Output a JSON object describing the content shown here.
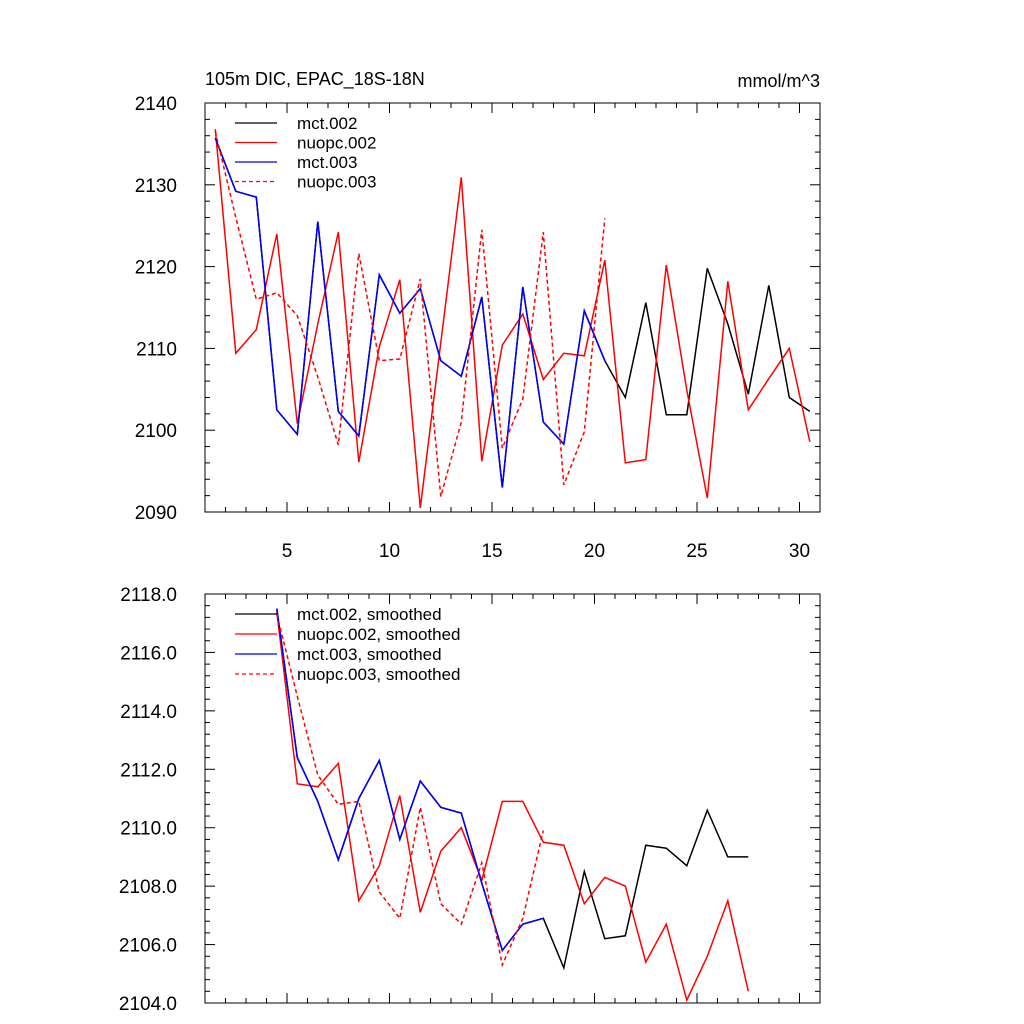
{
  "chart_data": [
    {
      "type": "line",
      "title": "105m DIC, EPAC_18S-18N",
      "units": "mmol/m^3",
      "xlabel": "",
      "ylabel": "",
      "xlim": [
        1,
        31
      ],
      "ylim": [
        2090,
        2140
      ],
      "x_ticks": [
        5,
        10,
        15,
        20,
        25,
        30
      ],
      "x_tick_labels": [
        "5",
        "10",
        "15",
        "20",
        "25",
        "30"
      ],
      "y_ticks": [
        2090,
        2100,
        2110,
        2120,
        2130,
        2140
      ],
      "y_tick_labels": [
        "2090",
        "2100",
        "2110",
        "2120",
        "2130",
        "2140"
      ],
      "show_x_tick_labels": true,
      "grid": false,
      "legend_position": "top-left",
      "series": [
        {
          "name": "mct.002",
          "color": "#000000",
          "dash": "solid",
          "x": [
            1.5,
            2.5,
            3.5,
            4.5,
            5.5,
            6.5,
            7.5,
            8.5,
            9.5,
            10.5,
            11.5,
            12.5,
            13.5,
            14.5,
            15.5,
            16.5,
            17.5,
            18.5,
            19.5,
            20.5,
            21.5,
            22.5,
            23.5,
            24.5,
            25.5,
            26.5,
            27.5,
            28.5,
            29.5,
            30.5
          ],
          "values": [
            2135.7,
            2129.2,
            2128.5,
            2102.5,
            2099.5,
            2125.5,
            2102.3,
            2099.3,
            2119.0,
            2114.3,
            2117.3,
            2108.5,
            2106.6,
            2116.3,
            2093.0,
            2117.5,
            2101.0,
            2098.3,
            2114.6,
            2108.5,
            2104.0,
            2115.6,
            2101.9,
            2101.9,
            2119.8,
            2113.0,
            2104.4,
            2117.7,
            2104.0,
            2102.3
          ]
        },
        {
          "name": "nuopc.002",
          "color": "#ff0000",
          "dash": "solid",
          "x": [
            1.5,
            2.5,
            3.5,
            4.5,
            5.5,
            6.5,
            7.5,
            8.5,
            9.5,
            10.5,
            11.5,
            12.5,
            13.5,
            14.5,
            15.5,
            16.5,
            17.5,
            18.5,
            19.5,
            20.5,
            21.5,
            22.5,
            23.5,
            24.5,
            25.5,
            26.5,
            27.5,
            28.5,
            29.5,
            30.5
          ],
          "values": [
            2136.8,
            2109.4,
            2112.3,
            2124.0,
            2100.8,
            2113.0,
            2124.2,
            2096.1,
            2110.2,
            2118.4,
            2090.5,
            2110.7,
            2130.9,
            2096.2,
            2110.4,
            2114.2,
            2106.2,
            2109.4,
            2109.1,
            2120.8,
            2096.0,
            2096.4,
            2120.2,
            2104.9,
            2091.7,
            2118.2,
            2102.5,
            2106.3,
            2110.0,
            2098.6
          ]
        },
        {
          "name": "mct.003",
          "color": "#0000ff",
          "dash": "solid",
          "x": [
            1.5,
            2.5,
            3.5,
            4.5,
            5.5,
            6.5,
            7.5,
            8.5,
            9.5,
            10.5,
            11.5,
            12.5,
            13.5,
            14.5,
            15.5,
            16.5,
            17.5,
            18.5,
            19.5,
            20.5
          ],
          "values": [
            2135.7,
            2129.2,
            2128.5,
            2102.5,
            2099.5,
            2125.5,
            2102.3,
            2099.3,
            2119.0,
            2114.3,
            2117.3,
            2108.5,
            2106.6,
            2116.3,
            2093.0,
            2117.5,
            2101.0,
            2098.3,
            2114.6,
            2108.5
          ]
        },
        {
          "name": "nuopc.003",
          "color": "#ff0000",
          "dash": "dashed",
          "x": [
            1.5,
            2.5,
            3.5,
            4.5,
            5.5,
            6.5,
            7.5,
            8.5,
            9.5,
            10.5,
            11.5,
            12.5,
            13.5,
            14.5,
            15.5,
            16.5,
            17.5,
            18.5,
            19.5,
            20.5
          ],
          "values": [
            2136.5,
            2126.0,
            2116.0,
            2116.8,
            2114.0,
            2106.5,
            2098.2,
            2121.6,
            2108.5,
            2108.7,
            2118.5,
            2091.9,
            2101.0,
            2124.5,
            2097.8,
            2103.8,
            2124.2,
            2093.3,
            2099.8,
            2125.9
          ]
        }
      ]
    },
    {
      "type": "line",
      "title": "",
      "xlabel": "",
      "ylabel": "",
      "xlim": [
        1,
        31
      ],
      "ylim": [
        2104.0,
        2118.0
      ],
      "x_ticks": [
        5,
        10,
        15,
        20,
        25,
        30
      ],
      "x_tick_labels": [],
      "y_ticks": [
        2104.0,
        2106.0,
        2108.0,
        2110.0,
        2112.0,
        2114.0,
        2116.0,
        2118.0
      ],
      "y_tick_labels": [
        "2104.0",
        "2106.0",
        "2108.0",
        "2110.0",
        "2112.0",
        "2114.0",
        "2116.0",
        "2118.0"
      ],
      "show_x_tick_labels": false,
      "grid": false,
      "legend_position": "top-left",
      "series": [
        {
          "name": "mct.002, smoothed",
          "color": "#000000",
          "dash": "solid",
          "x": [
            4.5,
            5.5,
            6.5,
            7.5,
            8.5,
            9.5,
            10.5,
            11.5,
            12.5,
            13.5,
            14.5,
            15.5,
            16.5,
            17.5,
            18.5,
            19.5,
            20.5,
            21.5,
            22.5,
            23.5,
            24.5,
            25.5,
            26.5,
            27.5
          ],
          "values": [
            2117.5,
            2112.4,
            2110.9,
            2108.9,
            2111.0,
            2112.3,
            2109.6,
            2111.6,
            2110.7,
            2110.5,
            2108.1,
            2105.8,
            2106.7,
            2106.9,
            2105.2,
            2108.5,
            2106.2,
            2106.3,
            2109.4,
            2109.3,
            2108.7,
            2110.6,
            2109.0,
            2109.0
          ]
        },
        {
          "name": "nuopc.002, smoothed",
          "color": "#ff0000",
          "dash": "solid",
          "x": [
            4.5,
            5.5,
            6.5,
            7.5,
            8.5,
            9.5,
            10.5,
            11.5,
            12.5,
            13.5,
            14.5,
            15.5,
            16.5,
            17.5,
            18.5,
            19.5,
            20.5,
            21.5,
            22.5,
            23.5,
            24.5,
            25.5,
            26.5,
            27.5
          ],
          "values": [
            2117.4,
            2111.5,
            2111.4,
            2112.2,
            2107.5,
            2108.7,
            2111.1,
            2107.1,
            2109.2,
            2110.0,
            2108.2,
            2110.9,
            2110.9,
            2109.5,
            2109.4,
            2107.4,
            2108.3,
            2108.0,
            2105.4,
            2106.7,
            2104.1,
            2105.6,
            2107.5,
            2104.4
          ]
        },
        {
          "name": "mct.003, smoothed",
          "color": "#0000ff",
          "dash": "solid",
          "x": [
            4.5,
            5.5,
            6.5,
            7.5,
            8.5,
            9.5,
            10.5,
            11.5,
            12.5,
            13.5,
            14.5,
            15.5,
            16.5,
            17.5
          ],
          "values": [
            2117.5,
            2112.4,
            2110.9,
            2108.9,
            2111.0,
            2112.3,
            2109.6,
            2111.6,
            2110.7,
            2110.5,
            2108.1,
            2105.8,
            2106.7,
            2106.9
          ]
        },
        {
          "name": "nuopc.003, smoothed",
          "color": "#ff0000",
          "dash": "dashed",
          "x": [
            4.5,
            5.5,
            6.5,
            7.5,
            8.5,
            9.5,
            10.5,
            11.5,
            12.5,
            13.5,
            14.5,
            15.5,
            16.5,
            17.5
          ],
          "values": [
            2117.3,
            2114.5,
            2111.8,
            2110.8,
            2110.9,
            2107.8,
            2106.9,
            2110.7,
            2107.4,
            2106.7,
            2108.8,
            2105.3,
            2106.9,
            2109.9
          ]
        }
      ]
    }
  ]
}
